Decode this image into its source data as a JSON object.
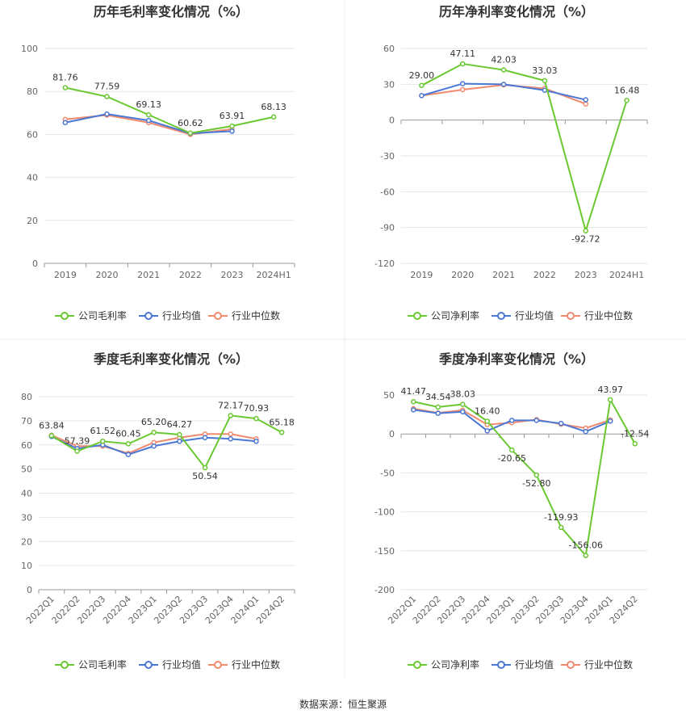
{
  "source": "数据来源：恒生聚源",
  "colors": {
    "company": "#6ac831",
    "avg": "#4a78d4",
    "median": "#f08a6e",
    "grid": "#e6e6e6",
    "axis": "#999999"
  },
  "chart_data": [
    {
      "type": "line",
      "title": "历年毛利率变化情况（%）",
      "categories": [
        "2019",
        "2020",
        "2021",
        "2022",
        "2023",
        "2024H1"
      ],
      "ylim": [
        0,
        100
      ],
      "yticks": [
        0,
        20,
        40,
        60,
        80,
        100
      ],
      "series": [
        {
          "name": "公司毛利率",
          "values": [
            81.76,
            77.59,
            69.13,
            60.62,
            63.91,
            68.13
          ],
          "labels": [
            "81.76",
            "77.59",
            "69.13",
            "60.62",
            "63.91",
            "68.13"
          ]
        },
        {
          "name": "行业均值",
          "values": [
            65.5,
            69.5,
            66.5,
            60.5,
            61.5,
            null
          ]
        },
        {
          "name": "行业中位数",
          "values": [
            67.0,
            69.0,
            65.5,
            60.0,
            62.5,
            null
          ]
        }
      ]
    },
    {
      "type": "line",
      "title": "历年净利率变化情况（%）",
      "categories": [
        "2019",
        "2020",
        "2021",
        "2022",
        "2023",
        "2024H1"
      ],
      "ylim": [
        -120,
        60
      ],
      "yticks": [
        -120,
        -90,
        -60,
        -30,
        0,
        30,
        60
      ],
      "series": [
        {
          "name": "公司净利率",
          "values": [
            29.0,
            47.11,
            42.03,
            33.03,
            -92.72,
            16.48
          ],
          "labels": [
            "29.00",
            "47.11",
            "42.03",
            "33.03",
            "-92.72",
            "16.48"
          ]
        },
        {
          "name": "行业均值",
          "values": [
            20.5,
            30.5,
            30.0,
            25.0,
            17.0,
            null
          ]
        },
        {
          "name": "行业中位数",
          "values": [
            20.5,
            25.5,
            29.5,
            26.5,
            13.5,
            null
          ]
        }
      ]
    },
    {
      "type": "line",
      "title": "季度毛利率变化情况（%）",
      "categories": [
        "2022Q1",
        "2022Q2",
        "2022Q3",
        "2022Q4",
        "2023Q1",
        "2023Q2",
        "2023Q3",
        "2023Q4",
        "2024Q1",
        "2024Q2"
      ],
      "ylim": [
        0,
        80
      ],
      "yticks": [
        0,
        10,
        20,
        30,
        40,
        50,
        60,
        70,
        80
      ],
      "series": [
        {
          "name": "公司毛利率",
          "values": [
            63.84,
            57.39,
            61.52,
            60.45,
            65.2,
            64.27,
            50.54,
            72.17,
            70.93,
            65.18
          ],
          "labels": [
            "63.84",
            "57.39",
            "61.52",
            "60.45",
            "65.20",
            "64.27",
            "50.54",
            "72.17",
            "70.93",
            "65.18"
          ]
        },
        {
          "name": "行业均值",
          "values": [
            63.5,
            58.5,
            60.0,
            56.0,
            59.5,
            61.5,
            63.0,
            62.5,
            61.5,
            null
          ]
        },
        {
          "name": "行业中位数",
          "values": [
            64.0,
            59.5,
            59.5,
            56.5,
            61.0,
            63.0,
            64.5,
            64.5,
            62.5,
            null
          ]
        }
      ]
    },
    {
      "type": "line",
      "title": "季度净利率变化情况（%）",
      "categories": [
        "2022Q1",
        "2022Q2",
        "2022Q3",
        "2022Q4",
        "2023Q1",
        "2023Q2",
        "2023Q3",
        "2023Q4",
        "2024Q1",
        "2024Q2"
      ],
      "ylim": [
        -200,
        50
      ],
      "yticks": [
        -200,
        -150,
        -100,
        -50,
        0,
        50
      ],
      "series": [
        {
          "name": "公司净利率",
          "values": [
            41.47,
            34.54,
            38.03,
            16.4,
            -20.65,
            -52.8,
            -119.93,
            -156.06,
            43.97,
            -12.54
          ],
          "labels": [
            "41.47",
            "34.54",
            "38.03",
            "16.40",
            "-20.65",
            "-52.80",
            "-119.93",
            "-156.06",
            "43.97",
            "-12.54"
          ]
        },
        {
          "name": "行业均值",
          "values": [
            31.0,
            26.5,
            28.5,
            4.0,
            17.5,
            17.5,
            13.5,
            3.0,
            16.5,
            null
          ]
        },
        {
          "name": "行业中位数",
          "values": [
            32.5,
            27.0,
            30.5,
            12.0,
            14.5,
            18.5,
            12.5,
            7.5,
            18.0,
            null
          ]
        }
      ]
    }
  ]
}
